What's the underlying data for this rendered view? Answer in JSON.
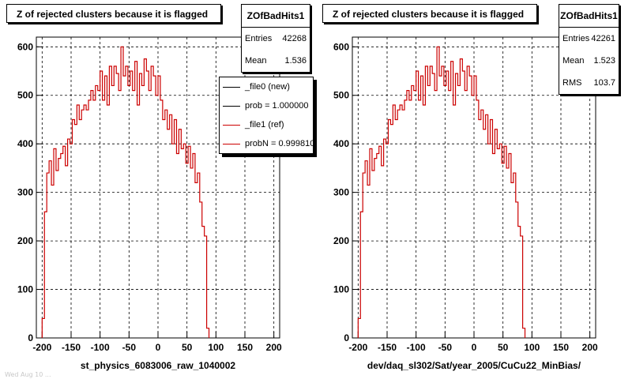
{
  "left": {
    "title": "Z of rejected clusters  because it is flagged",
    "stats": {
      "name": "ZOfBadHits1",
      "rows": [
        {
          "label": "Entries",
          "value": "42268"
        },
        {
          "label": "Mean",
          "value": "1.536"
        }
      ]
    },
    "xcaption": "st_physics_6083006_raw_1040002",
    "legend": [
      {
        "label": "_file0 (new)",
        "color": "#000000"
      },
      {
        "label": "prob = 1.000000",
        "color": "#000000"
      },
      {
        "label": "_file1 (ref)",
        "color": "#cc0000"
      },
      {
        "label": "probN = 0.999810",
        "color": "#cc0000"
      }
    ]
  },
  "right": {
    "title": "Z of rejected clusters  because it is flagged",
    "stats": {
      "name": "ZOfBadHits1",
      "rows": [
        {
          "label": "Entries",
          "value": "42261"
        },
        {
          "label": "Mean",
          "value": "1.523"
        },
        {
          "label": "RMS",
          "value": "103.7"
        }
      ]
    },
    "xcaption": "dev/daq_sl302/Sat/year_2005/CuCu22_MinBias/"
  },
  "footer": "Wed Aug 10 ...",
  "chart_data": [
    {
      "type": "line",
      "title": "Z of rejected clusters  because it is flagged",
      "xlabel": "st_physics_6083006_raw_1040002",
      "ylabel": "",
      "xlim": [
        -210,
        210
      ],
      "ylim": [
        0,
        620
      ],
      "xticks": [
        -200,
        -150,
        -100,
        -50,
        0,
        50,
        100,
        150,
        200
      ],
      "yticks": [
        0,
        100,
        200,
        300,
        400,
        500,
        600
      ],
      "grid": true,
      "series": [
        {
          "name": "_file1 (ref)",
          "color": "#cc0000",
          "binwidth": 4,
          "x_start": -200,
          "values": [
            40,
            260,
            340,
            365,
            315,
            390,
            345,
            370,
            380,
            395,
            355,
            410,
            400,
            450,
            440,
            480,
            450,
            470,
            480,
            470,
            490,
            510,
            490,
            520,
            510,
            550,
            490,
            540,
            480,
            560,
            520,
            560,
            545,
            510,
            600,
            540,
            560,
            520,
            550,
            510,
            570,
            480,
            545,
            520,
            575,
            550,
            510,
            560,
            540,
            500,
            540,
            490,
            450,
            470,
            430,
            460,
            400,
            450,
            380,
            430,
            390,
            400,
            360,
            395,
            350,
            380,
            320,
            340,
            280,
            230,
            210,
            20
          ]
        }
      ]
    },
    {
      "type": "line",
      "title": "Z of rejected clusters  because it is flagged",
      "xlabel": "dev/daq_sl302/Sat/year_2005/CuCu22_MinBias/",
      "ylabel": "",
      "xlim": [
        -210,
        210
      ],
      "ylim": [
        0,
        620
      ],
      "xticks": [
        -200,
        -150,
        -100,
        -50,
        0,
        50,
        100,
        150,
        200
      ],
      "yticks": [
        0,
        100,
        200,
        300,
        400,
        500,
        600
      ],
      "grid": true,
      "series": [
        {
          "name": "",
          "color": "#cc0000",
          "binwidth": 4,
          "x_start": -200,
          "values": [
            40,
            260,
            340,
            365,
            315,
            390,
            345,
            370,
            380,
            395,
            355,
            410,
            400,
            450,
            440,
            480,
            450,
            470,
            480,
            470,
            490,
            510,
            490,
            520,
            510,
            550,
            490,
            540,
            480,
            560,
            520,
            560,
            545,
            510,
            600,
            540,
            560,
            520,
            550,
            510,
            570,
            480,
            545,
            520,
            575,
            550,
            510,
            560,
            540,
            500,
            540,
            490,
            450,
            470,
            430,
            460,
            400,
            450,
            380,
            430,
            390,
            400,
            360,
            395,
            350,
            380,
            320,
            340,
            280,
            230,
            210,
            20
          ]
        }
      ]
    }
  ]
}
